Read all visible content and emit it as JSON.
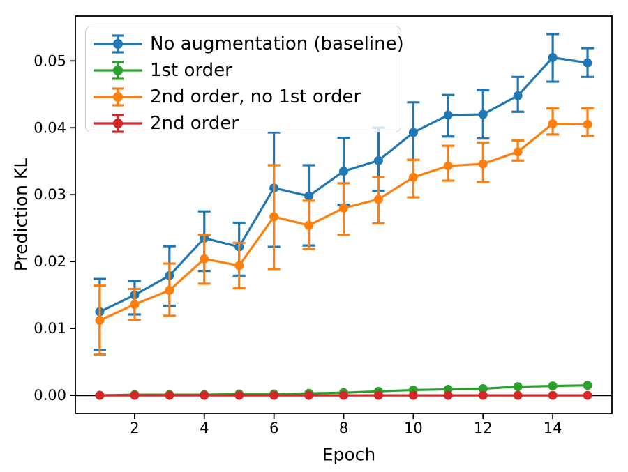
{
  "chart_data": {
    "type": "line",
    "title": "",
    "xlabel": "Epoch",
    "ylabel": "Prediction KL",
    "grid": false,
    "legend_position": "upper left",
    "axhline": 0.0,
    "xlim": [
      0.3,
      15.7
    ],
    "ylim": [
      -0.0027,
      0.0567
    ],
    "xticks": [
      2,
      4,
      6,
      8,
      10,
      12,
      14
    ],
    "yticks": [
      0.0,
      0.01,
      0.02,
      0.03,
      0.04,
      0.05
    ],
    "ytick_labels": [
      "0.00",
      "0.01",
      "0.02",
      "0.03",
      "0.04",
      "0.05"
    ],
    "x": [
      1,
      2,
      3,
      4,
      5,
      6,
      7,
      8,
      9,
      10,
      11,
      12,
      13,
      14,
      15
    ],
    "series": [
      {
        "name": "No augmentation (baseline)",
        "color": "#1f77b4",
        "values": [
          0.0125,
          0.015,
          0.0179,
          0.0235,
          0.0222,
          0.031,
          0.0298,
          0.0335,
          0.0351,
          0.0393,
          0.0419,
          0.042,
          0.0448,
          0.0505,
          0.0497
        ],
        "err_lo": [
          0.0068,
          0.0121,
          0.0134,
          0.0186,
          0.0179,
          0.0222,
          0.0224,
          0.0285,
          0.0306,
          0.0352,
          0.0387,
          0.0384,
          0.0424,
          0.0469,
          0.0476
        ],
        "err_hi": [
          0.0174,
          0.0171,
          0.0223,
          0.0275,
          0.0258,
          0.0393,
          0.0344,
          0.0385,
          0.04,
          0.0438,
          0.0449,
          0.0456,
          0.0476,
          0.054,
          0.0519
        ]
      },
      {
        "name": "1st order",
        "color": "#2ca02c",
        "values": [
          0.0,
          0.0001,
          0.0001,
          0.0001,
          0.0002,
          0.0002,
          0.0003,
          0.0004,
          0.0006,
          0.0008,
          0.0009,
          0.001,
          0.0013,
          0.0014,
          0.0015
        ],
        "err_lo": [
          0.0,
          0.0001,
          0.0001,
          0.0001,
          0.0002,
          0.0002,
          0.0003,
          0.0004,
          0.0006,
          0.0008,
          0.0009,
          0.001,
          0.0013,
          0.0014,
          0.0015
        ],
        "err_hi": [
          0.0,
          0.0001,
          0.0001,
          0.0001,
          0.0002,
          0.0002,
          0.0003,
          0.0004,
          0.0006,
          0.0008,
          0.0009,
          0.001,
          0.0013,
          0.0014,
          0.0015
        ]
      },
      {
        "name": "2nd order, no 1st order",
        "color": "#ff7f0e",
        "values": [
          0.0112,
          0.0136,
          0.0157,
          0.0204,
          0.0194,
          0.0267,
          0.0254,
          0.028,
          0.0293,
          0.0326,
          0.0343,
          0.0346,
          0.0364,
          0.0406,
          0.0405
        ],
        "err_lo": [
          0.0061,
          0.0113,
          0.0119,
          0.0167,
          0.016,
          0.0189,
          0.0219,
          0.024,
          0.0257,
          0.0296,
          0.0321,
          0.0319,
          0.0351,
          0.039,
          0.0388
        ],
        "err_hi": [
          0.0164,
          0.0159,
          0.0197,
          0.024,
          0.0228,
          0.0344,
          0.0291,
          0.0317,
          0.0326,
          0.0352,
          0.0373,
          0.0378,
          0.0381,
          0.0429,
          0.0429
        ]
      },
      {
        "name": "2nd order",
        "color": "#d62728",
        "values": [
          0.0,
          0.0,
          0.0,
          0.0,
          0.0,
          0.0,
          0.0,
          0.0,
          0.0,
          0.0,
          0.0,
          0.0,
          0.0,
          0.0,
          0.0
        ],
        "err_lo": [
          0.0,
          0.0,
          0.0,
          0.0,
          0.0,
          0.0,
          0.0,
          0.0,
          0.0,
          0.0,
          0.0,
          0.0,
          0.0,
          0.0,
          0.0
        ],
        "err_hi": [
          0.0,
          0.0,
          0.0,
          0.0,
          0.0,
          0.0,
          0.0,
          0.0,
          0.0,
          0.0,
          0.0,
          0.0,
          0.0,
          0.0,
          0.0
        ]
      }
    ]
  }
}
